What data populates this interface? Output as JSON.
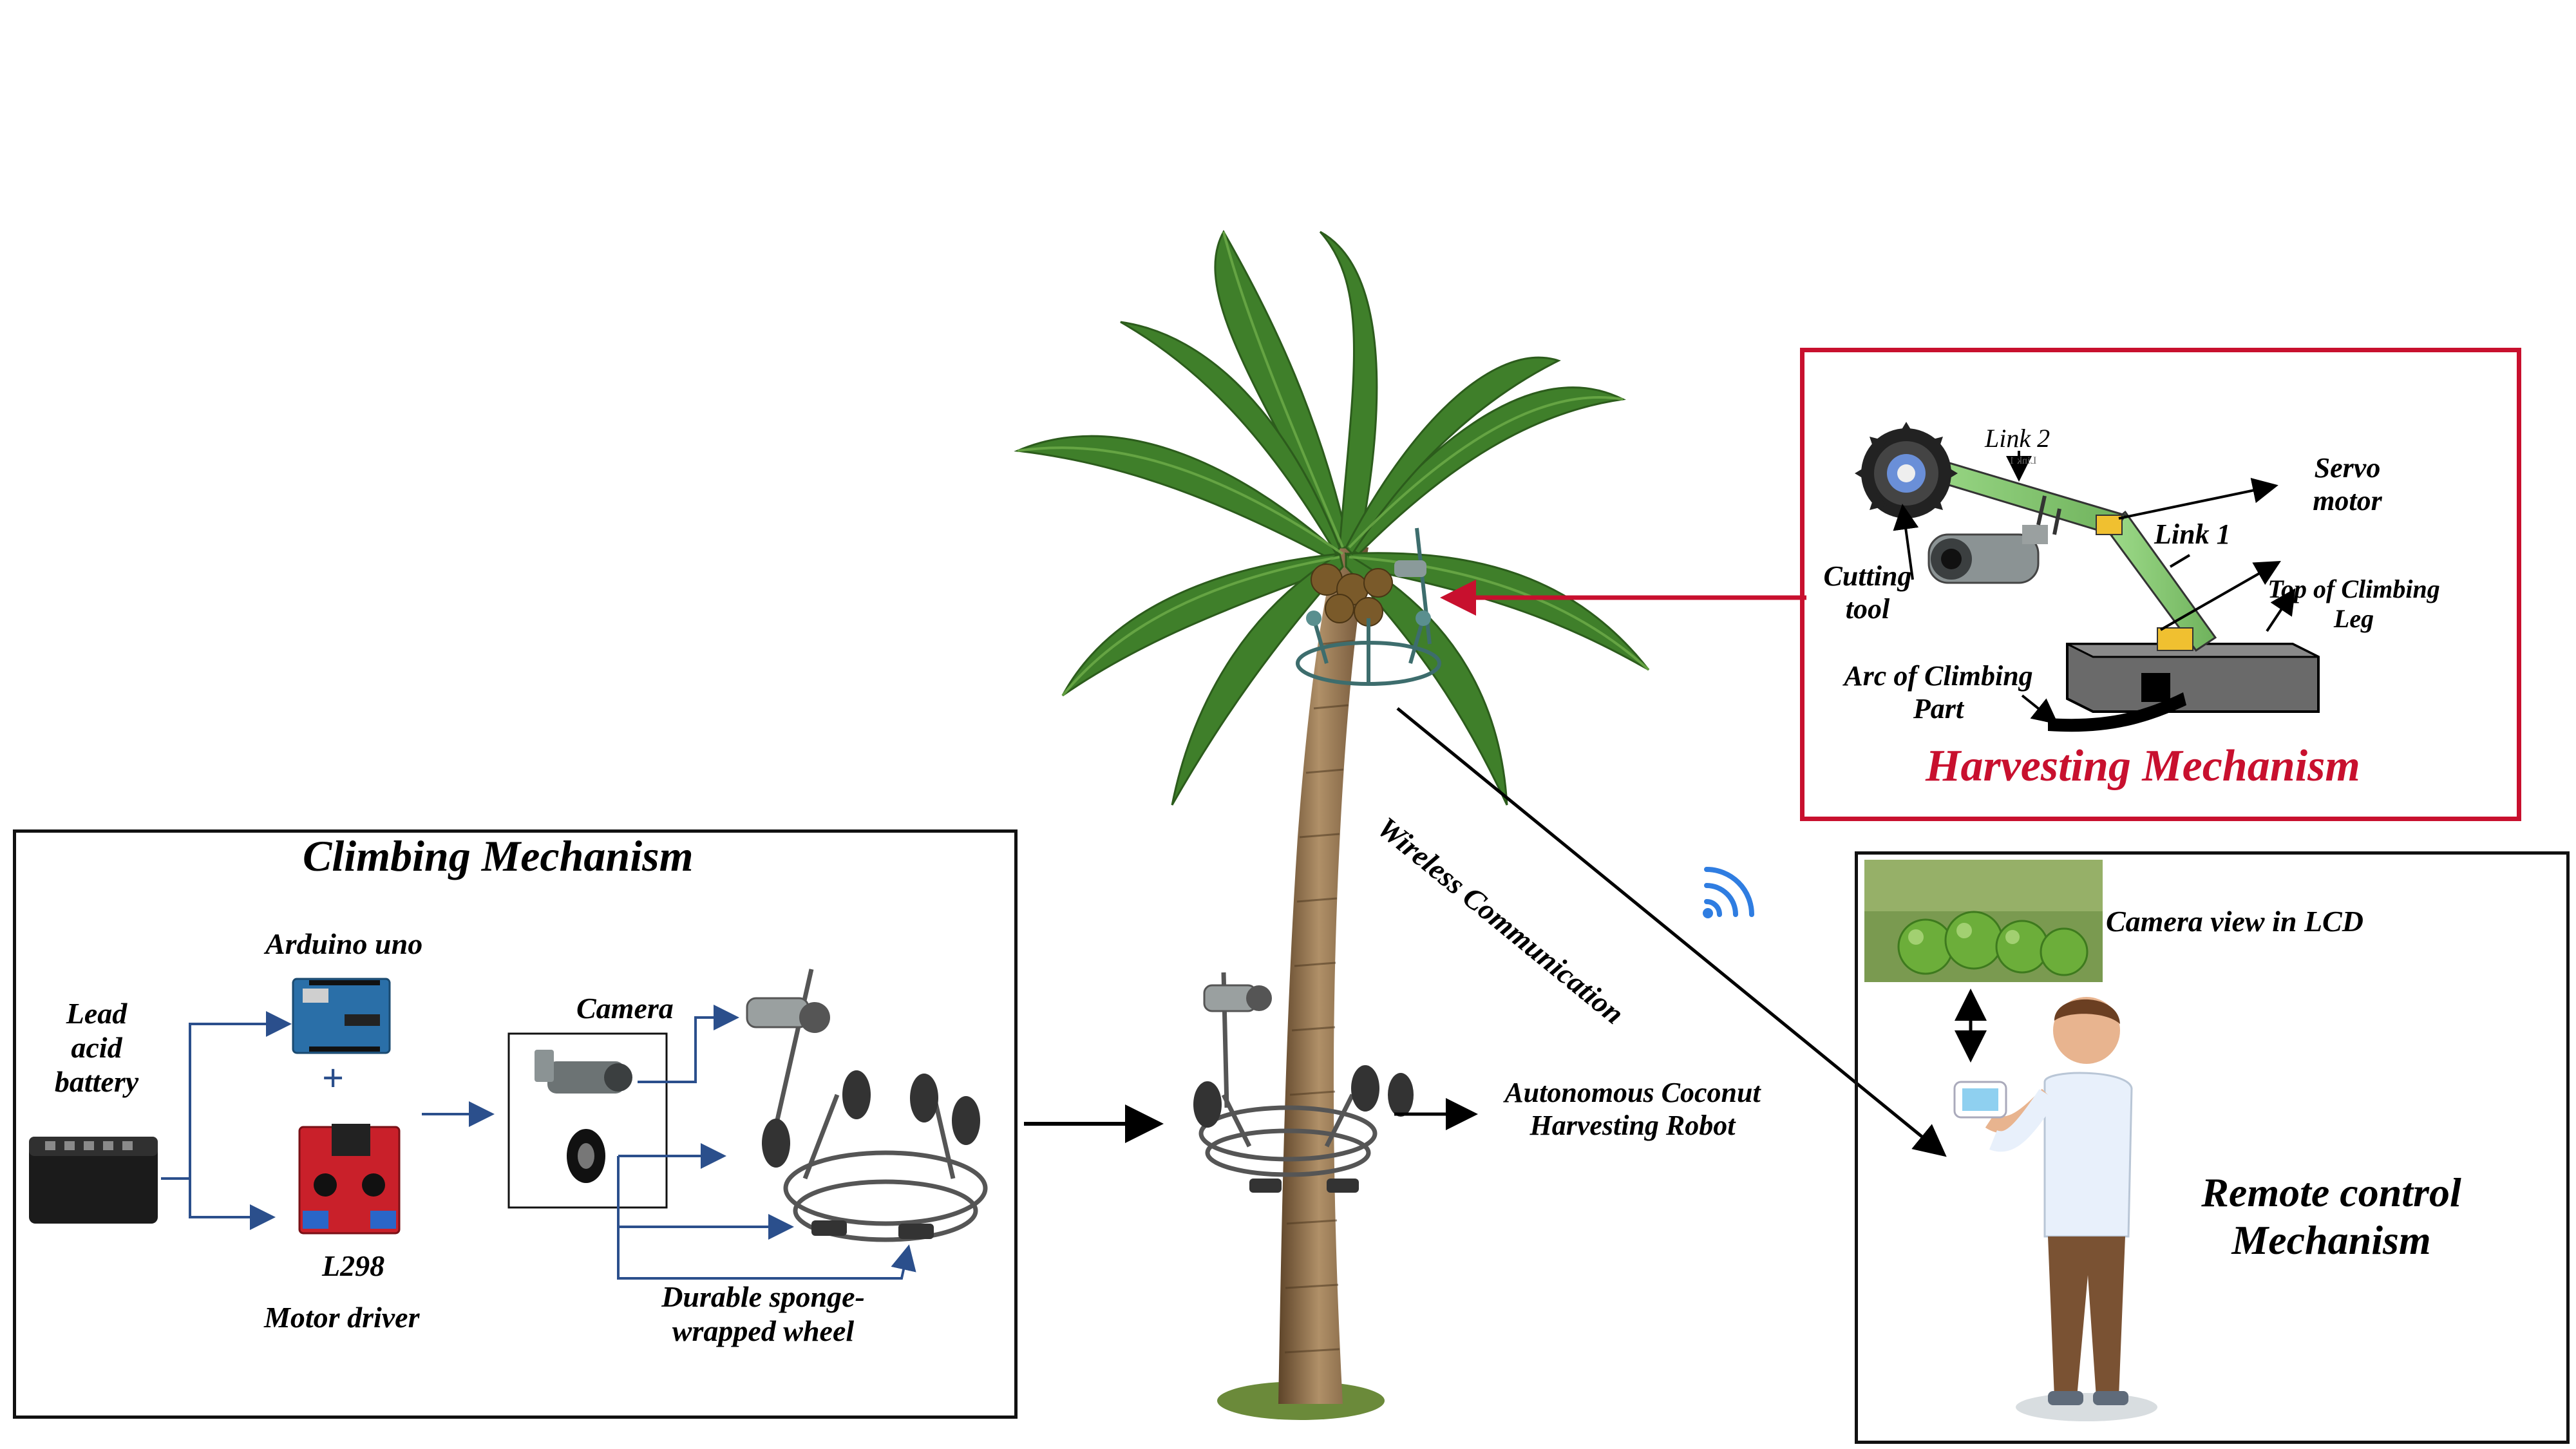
{
  "climbing": {
    "title": "Climbing Mechanism",
    "arduino": "Arduino uno",
    "battery": [
      "Lead",
      "acid",
      "battery"
    ],
    "l298": "L298",
    "motor_driver": "Motor driver",
    "camera": "Camera",
    "wheel": [
      "Durable sponge-",
      "wrapped wheel"
    ],
    "plus": "+"
  },
  "robot": {
    "label": [
      "Autonomous Coconut",
      "Harvesting Robot"
    ]
  },
  "wireless": {
    "label": "Wireless Communication"
  },
  "harvesting": {
    "title": "Harvesting Mechanism",
    "link2": "Link 2",
    "link1": "Link 1",
    "link1_mirror": "Link 1",
    "servo": [
      "Servo",
      "motor"
    ],
    "cutting": [
      "Cutting",
      "tool"
    ],
    "top_leg": [
      "Top of Climbing",
      "Leg"
    ],
    "arc": [
      "Arc of Climbing",
      "Part"
    ]
  },
  "remote": {
    "camera_view": "Camera view in LCD",
    "title": [
      "Remote control",
      "Mechanism"
    ]
  },
  "colors": {
    "connector_blue": "#2b4f8c",
    "harvest_red": "#c8102e",
    "wifi_blue": "#2f7de1",
    "leaf_green": "#3f7f2a",
    "trunk_brown": "#8a6a45",
    "link_green": "#8bd07a",
    "person_shirt": "#e8f0fb",
    "person_pants": "#7a5233"
  }
}
